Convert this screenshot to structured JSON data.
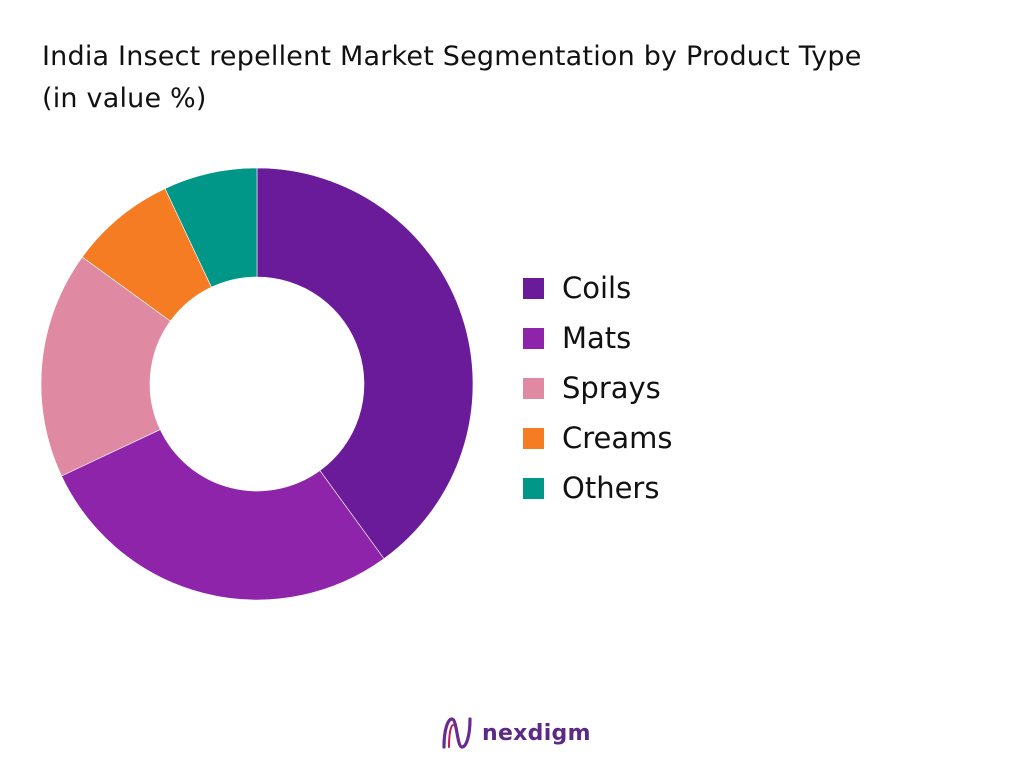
{
  "title_line1": "India Insect repellent Market  Segmentation by Product Type",
  "title_line2": "(in value %)",
  "brand": {
    "name": "nexdigm",
    "icon": "nexdigm-logo-icon"
  },
  "chart_data": {
    "type": "pie",
    "style": "donut",
    "legend_position": "right",
    "categories": [
      "Coils",
      "Mats",
      "Sprays",
      "Creams",
      "Others"
    ],
    "values": [
      40,
      28,
      17,
      8,
      7
    ],
    "colors": [
      "#6a1b9a",
      "#8e24aa",
      "#df8aa2",
      "#f57c22",
      "#009688"
    ]
  }
}
